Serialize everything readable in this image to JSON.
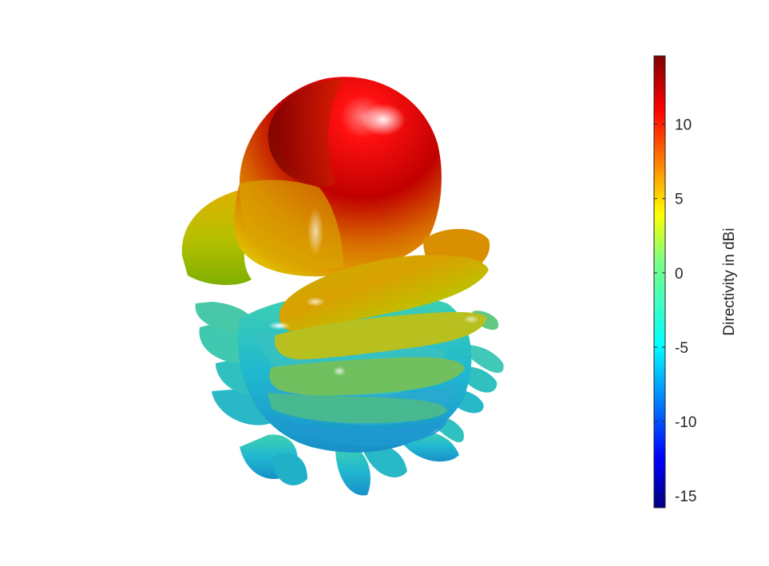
{
  "chart_data": {
    "type": "3d-radiation-pattern",
    "colorbar": {
      "label": "Directivity in dBi",
      "range": [
        -15.8,
        14.6
      ],
      "ticks": [
        -15,
        -10,
        -5,
        0,
        5,
        10
      ],
      "tick_labels": [
        "-15",
        "-10",
        "-5",
        "0",
        "5",
        "10"
      ],
      "colormap": "jet"
    },
    "colors": {
      "max": "#800000",
      "high": "#ff0000",
      "mid_high": "#ffff00",
      "mid": "#80ff80",
      "mid_low": "#00ffff",
      "low": "#0000ff",
      "min": "#000080"
    }
  }
}
